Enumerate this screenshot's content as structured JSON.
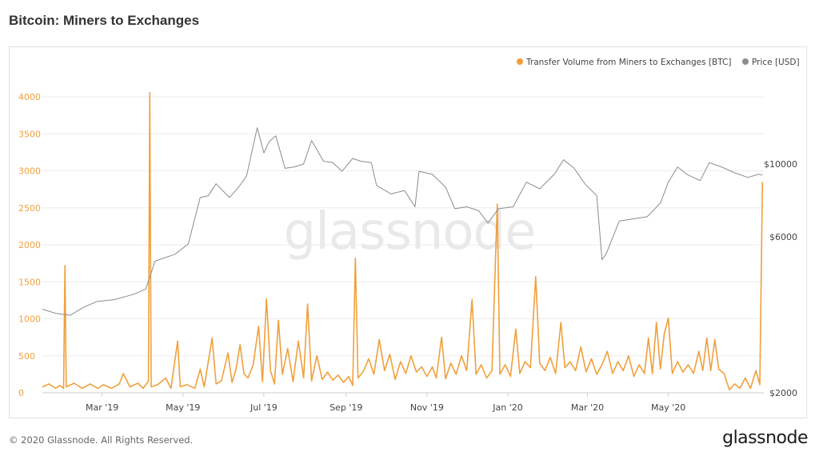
{
  "page": {
    "title": "Bitcoin: Miners to Exchanges",
    "copyright": "© 2020 Glassnode. All Rights Reserved.",
    "brand": "glassnode",
    "watermark": "glassnode"
  },
  "colors": {
    "volume": "#f0a03c",
    "price": "#8c8c8c",
    "grid": "#ececec",
    "axis": "#cccccc"
  },
  "chart_data": {
    "type": "line",
    "title": "",
    "xlabel": "",
    "ylabel_left": "",
    "ylabel_right": "",
    "x_range": [
      "2019-01-15",
      "2020-07-12"
    ],
    "x_ticks": [
      {
        "date": "2019-03-01",
        "label": "Mar '19"
      },
      {
        "date": "2019-05-01",
        "label": "May '19"
      },
      {
        "date": "2019-07-01",
        "label": "Jul '19"
      },
      {
        "date": "2019-09-01",
        "label": "Sep '19"
      },
      {
        "date": "2019-11-01",
        "label": "Nov '19"
      },
      {
        "date": "2020-01-01",
        "label": "Jan '20"
      },
      {
        "date": "2020-03-01",
        "label": "Mar '20"
      },
      {
        "date": "2020-05-01",
        "label": "May '20"
      }
    ],
    "y_left": {
      "min": 0,
      "max": 4000,
      "ticks": [
        0,
        500,
        1000,
        1500,
        2000,
        2500,
        3000,
        3500,
        4000
      ],
      "labels": [
        "0",
        "500",
        "1000",
        "1500",
        "2000",
        "2500",
        "3000",
        "3500",
        "4000"
      ]
    },
    "y_right": {
      "scale": "log",
      "ticks": [
        {
          "value": 2000,
          "label": "$2000"
        },
        {
          "value": 6000,
          "label": "$6000"
        },
        {
          "value": 10000,
          "label": "$10000"
        }
      ]
    },
    "grid": true,
    "legend_position": "top-right",
    "series": [
      {
        "name": "Transfer Volume from Miners to Exchanges [BTC]",
        "axis": "left",
        "color": "#f0a03c",
        "points": [
          [
            "2019-01-15",
            80
          ],
          [
            "2019-01-20",
            120
          ],
          [
            "2019-01-25",
            60
          ],
          [
            "2019-01-28",
            100
          ],
          [
            "2019-01-31",
            60
          ],
          [
            "2019-02-01",
            1720
          ],
          [
            "2019-02-02",
            80
          ],
          [
            "2019-02-08",
            130
          ],
          [
            "2019-02-14",
            60
          ],
          [
            "2019-02-20",
            120
          ],
          [
            "2019-02-26",
            60
          ],
          [
            "2019-03-02",
            110
          ],
          [
            "2019-03-08",
            60
          ],
          [
            "2019-03-14",
            120
          ],
          [
            "2019-03-17",
            260
          ],
          [
            "2019-03-22",
            80
          ],
          [
            "2019-03-28",
            130
          ],
          [
            "2019-04-01",
            60
          ],
          [
            "2019-04-05",
            160
          ],
          [
            "2019-04-06",
            4060
          ],
          [
            "2019-04-07",
            80
          ],
          [
            "2019-04-12",
            110
          ],
          [
            "2019-04-18",
            200
          ],
          [
            "2019-04-22",
            60
          ],
          [
            "2019-04-27",
            700
          ],
          [
            "2019-04-29",
            80
          ],
          [
            "2019-05-04",
            110
          ],
          [
            "2019-05-10",
            60
          ],
          [
            "2019-05-14",
            320
          ],
          [
            "2019-05-17",
            80
          ],
          [
            "2019-05-23",
            740
          ],
          [
            "2019-05-26",
            120
          ],
          [
            "2019-05-30",
            160
          ],
          [
            "2019-06-04",
            540
          ],
          [
            "2019-06-07",
            140
          ],
          [
            "2019-06-10",
            320
          ],
          [
            "2019-06-13",
            650
          ],
          [
            "2019-06-16",
            260
          ],
          [
            "2019-06-19",
            200
          ],
          [
            "2019-06-23",
            380
          ],
          [
            "2019-06-27",
            900
          ],
          [
            "2019-06-30",
            150
          ],
          [
            "2019-07-03",
            1270
          ],
          [
            "2019-07-06",
            300
          ],
          [
            "2019-07-09",
            120
          ],
          [
            "2019-07-12",
            980
          ],
          [
            "2019-07-15",
            250
          ],
          [
            "2019-07-19",
            600
          ],
          [
            "2019-07-23",
            150
          ],
          [
            "2019-07-27",
            700
          ],
          [
            "2019-07-31",
            200
          ],
          [
            "2019-08-03",
            1200
          ],
          [
            "2019-08-06",
            160
          ],
          [
            "2019-08-10",
            500
          ],
          [
            "2019-08-14",
            180
          ],
          [
            "2019-08-18",
            280
          ],
          [
            "2019-08-22",
            170
          ],
          [
            "2019-08-26",
            240
          ],
          [
            "2019-08-30",
            140
          ],
          [
            "2019-09-03",
            220
          ],
          [
            "2019-09-06",
            100
          ],
          [
            "2019-09-08",
            1820
          ],
          [
            "2019-09-10",
            200
          ],
          [
            "2019-09-14",
            290
          ],
          [
            "2019-09-18",
            460
          ],
          [
            "2019-09-22",
            250
          ],
          [
            "2019-09-26",
            720
          ],
          [
            "2019-09-30",
            300
          ],
          [
            "2019-10-04",
            520
          ],
          [
            "2019-10-08",
            180
          ],
          [
            "2019-10-12",
            420
          ],
          [
            "2019-10-16",
            260
          ],
          [
            "2019-10-20",
            500
          ],
          [
            "2019-10-24",
            280
          ],
          [
            "2019-10-28",
            350
          ],
          [
            "2019-11-01",
            220
          ],
          [
            "2019-11-05",
            350
          ],
          [
            "2019-11-08",
            200
          ],
          [
            "2019-11-12",
            750
          ],
          [
            "2019-11-15",
            190
          ],
          [
            "2019-11-19",
            400
          ],
          [
            "2019-11-23",
            250
          ],
          [
            "2019-11-27",
            500
          ],
          [
            "2019-12-01",
            300
          ],
          [
            "2019-12-05",
            1260
          ],
          [
            "2019-12-08",
            250
          ],
          [
            "2019-12-12",
            380
          ],
          [
            "2019-12-16",
            200
          ],
          [
            "2019-12-20",
            300
          ],
          [
            "2019-12-24",
            2550
          ],
          [
            "2019-12-26",
            250
          ],
          [
            "2019-12-30",
            380
          ],
          [
            "2020-01-03",
            220
          ],
          [
            "2020-01-07",
            860
          ],
          [
            "2020-01-10",
            260
          ],
          [
            "2020-01-14",
            420
          ],
          [
            "2020-01-18",
            340
          ],
          [
            "2020-01-22",
            1570
          ],
          [
            "2020-01-25",
            400
          ],
          [
            "2020-01-29",
            300
          ],
          [
            "2020-02-02",
            480
          ],
          [
            "2020-02-06",
            260
          ],
          [
            "2020-02-10",
            950
          ],
          [
            "2020-02-13",
            340
          ],
          [
            "2020-02-17",
            420
          ],
          [
            "2020-02-21",
            300
          ],
          [
            "2020-02-25",
            620
          ],
          [
            "2020-02-29",
            280
          ],
          [
            "2020-03-04",
            460
          ],
          [
            "2020-03-08",
            250
          ],
          [
            "2020-03-12",
            380
          ],
          [
            "2020-03-16",
            560
          ],
          [
            "2020-03-20",
            260
          ],
          [
            "2020-03-24",
            420
          ],
          [
            "2020-03-28",
            300
          ],
          [
            "2020-04-01",
            500
          ],
          [
            "2020-04-05",
            220
          ],
          [
            "2020-04-09",
            380
          ],
          [
            "2020-04-13",
            260
          ],
          [
            "2020-04-16",
            740
          ],
          [
            "2020-04-19",
            260
          ],
          [
            "2020-04-22",
            950
          ],
          [
            "2020-04-25",
            320
          ],
          [
            "2020-04-28",
            800
          ],
          [
            "2020-05-01",
            1010
          ],
          [
            "2020-05-04",
            260
          ],
          [
            "2020-05-08",
            420
          ],
          [
            "2020-05-12",
            280
          ],
          [
            "2020-05-16",
            380
          ],
          [
            "2020-05-20",
            260
          ],
          [
            "2020-05-24",
            560
          ],
          [
            "2020-05-27",
            300
          ],
          [
            "2020-05-30",
            740
          ],
          [
            "2020-06-02",
            300
          ],
          [
            "2020-06-05",
            720
          ],
          [
            "2020-06-08",
            320
          ],
          [
            "2020-06-12",
            260
          ],
          [
            "2020-06-16",
            40
          ],
          [
            "2020-06-20",
            120
          ],
          [
            "2020-06-24",
            60
          ],
          [
            "2020-06-28",
            200
          ],
          [
            "2020-07-02",
            60
          ],
          [
            "2020-07-06",
            300
          ],
          [
            "2020-07-09",
            110
          ],
          [
            "2020-07-11",
            2850
          ]
        ]
      },
      {
        "name": "Price [USD]",
        "axis": "right",
        "color": "#8c8c8c",
        "points": [
          [
            "2019-01-15",
            3600
          ],
          [
            "2019-01-25",
            3500
          ],
          [
            "2019-02-05",
            3450
          ],
          [
            "2019-02-15",
            3650
          ],
          [
            "2019-02-25",
            3800
          ],
          [
            "2019-03-10",
            3850
          ],
          [
            "2019-03-25",
            4000
          ],
          [
            "2019-04-03",
            4150
          ],
          [
            "2019-04-10",
            5050
          ],
          [
            "2019-04-25",
            5300
          ],
          [
            "2019-05-05",
            5700
          ],
          [
            "2019-05-14",
            7900
          ],
          [
            "2019-05-20",
            8000
          ],
          [
            "2019-05-26",
            8700
          ],
          [
            "2019-06-05",
            7900
          ],
          [
            "2019-06-12",
            8500
          ],
          [
            "2019-06-18",
            9200
          ],
          [
            "2019-06-26",
            12900
          ],
          [
            "2019-07-01",
            10800
          ],
          [
            "2019-07-05",
            11700
          ],
          [
            "2019-07-10",
            12200
          ],
          [
            "2019-07-17",
            9700
          ],
          [
            "2019-07-24",
            9800
          ],
          [
            "2019-07-31",
            10000
          ],
          [
            "2019-08-06",
            11800
          ],
          [
            "2019-08-15",
            10200
          ],
          [
            "2019-08-22",
            10100
          ],
          [
            "2019-08-29",
            9500
          ],
          [
            "2019-09-06",
            10400
          ],
          [
            "2019-09-12",
            10200
          ],
          [
            "2019-09-20",
            10100
          ],
          [
            "2019-09-24",
            8600
          ],
          [
            "2019-10-05",
            8100
          ],
          [
            "2019-10-15",
            8300
          ],
          [
            "2019-10-23",
            7400
          ],
          [
            "2019-10-26",
            9500
          ],
          [
            "2019-11-05",
            9300
          ],
          [
            "2019-11-15",
            8500
          ],
          [
            "2019-11-22",
            7300
          ],
          [
            "2019-12-01",
            7400
          ],
          [
            "2019-12-10",
            7200
          ],
          [
            "2019-12-17",
            6600
          ],
          [
            "2019-12-25",
            7300
          ],
          [
            "2020-01-05",
            7400
          ],
          [
            "2020-01-15",
            8800
          ],
          [
            "2020-01-25",
            8400
          ],
          [
            "2020-02-05",
            9300
          ],
          [
            "2020-02-12",
            10300
          ],
          [
            "2020-02-20",
            9700
          ],
          [
            "2020-02-28",
            8700
          ],
          [
            "2020-03-08",
            8000
          ],
          [
            "2020-03-12",
            5100
          ],
          [
            "2020-03-15",
            5300
          ],
          [
            "2020-03-25",
            6700
          ],
          [
            "2020-04-05",
            6800
          ],
          [
            "2020-04-15",
            6900
          ],
          [
            "2020-04-25",
            7600
          ],
          [
            "2020-05-01",
            8800
          ],
          [
            "2020-05-08",
            9800
          ],
          [
            "2020-05-15",
            9300
          ],
          [
            "2020-05-25",
            8900
          ],
          [
            "2020-06-01",
            10100
          ],
          [
            "2020-06-10",
            9800
          ],
          [
            "2020-06-20",
            9400
          ],
          [
            "2020-06-30",
            9100
          ],
          [
            "2020-07-08",
            9300
          ],
          [
            "2020-07-11",
            9250
          ]
        ]
      }
    ]
  }
}
